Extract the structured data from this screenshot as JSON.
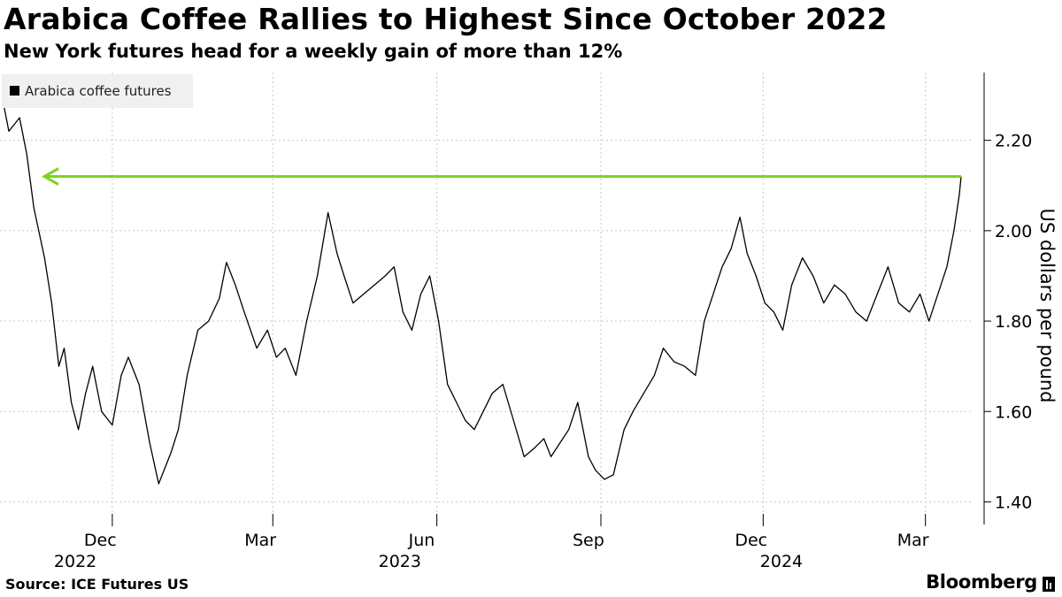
{
  "header": {
    "title": "Arabica Coffee Rallies to Highest Since October 2022",
    "subtitle": "New York futures head for a weekly gain of more than 12%"
  },
  "footer": {
    "source": "Source: ICE Futures US",
    "brand": "Bloomberg"
  },
  "colors": {
    "series": "#000000",
    "arrow": "#7ed321",
    "grid": "#c8c8c8",
    "legend_bg": "#f0f0f0"
  },
  "chart_data": {
    "type": "line",
    "title": "Arabica Coffee Rallies to Highest Since October 2022",
    "subtitle": "New York futures head for a weekly gain of more than 12%",
    "ylabel": "US dollars per pound",
    "xlabel": "",
    "ylim": [
      1.35,
      2.35
    ],
    "yticks": [
      1.4,
      1.6,
      1.8,
      2.0,
      2.2
    ],
    "ytick_labels": [
      "1.40",
      "1.60",
      "1.80",
      "2.00",
      "2.20"
    ],
    "xlim": [
      "2022-10-01",
      "2024-03-22"
    ],
    "month_ticks": [
      {
        "date": "2022-12-01",
        "label": "Dec"
      },
      {
        "date": "2023-03-01",
        "label": "Mar"
      },
      {
        "date": "2023-06-01",
        "label": "Jun"
      },
      {
        "date": "2023-09-01",
        "label": "Sep"
      },
      {
        "date": "2023-12-01",
        "label": "Dec"
      },
      {
        "date": "2024-03-01",
        "label": "Mar"
      }
    ],
    "year_ticks": [
      {
        "date": "2022-12-01",
        "label": "2022"
      },
      {
        "date": "2023-06-01",
        "label": "2023"
      },
      {
        "date": "2024-01-01",
        "label": "2024"
      }
    ],
    "grid": true,
    "legend": {
      "position": "top-left",
      "entries": [
        "Arabica coffee futures"
      ]
    },
    "series": [
      {
        "name": "Arabica coffee futures",
        "x": [
          "2022-10-01",
          "2022-10-04",
          "2022-10-10",
          "2022-10-14",
          "2022-10-18",
          "2022-10-24",
          "2022-10-28",
          "2022-11-01",
          "2022-11-04",
          "2022-11-08",
          "2022-11-12",
          "2022-11-16",
          "2022-11-20",
          "2022-11-25",
          "2022-12-01",
          "2022-12-06",
          "2022-12-10",
          "2022-12-16",
          "2022-12-22",
          "2022-12-27",
          "2023-01-03",
          "2023-01-07",
          "2023-01-12",
          "2023-01-18",
          "2023-01-24",
          "2023-01-30",
          "2023-02-03",
          "2023-02-08",
          "2023-02-13",
          "2023-02-20",
          "2023-02-26",
          "2023-03-03",
          "2023-03-08",
          "2023-03-14",
          "2023-03-20",
          "2023-03-26",
          "2023-04-01",
          "2023-04-06",
          "2023-04-10",
          "2023-04-15",
          "2023-04-21",
          "2023-04-27",
          "2023-05-03",
          "2023-05-08",
          "2023-05-13",
          "2023-05-18",
          "2023-05-23",
          "2023-05-28",
          "2023-06-02",
          "2023-06-07",
          "2023-06-12",
          "2023-06-17",
          "2023-06-22",
          "2023-06-27",
          "2023-07-02",
          "2023-07-08",
          "2023-07-14",
          "2023-07-20",
          "2023-07-26",
          "2023-07-31",
          "2023-08-04",
          "2023-08-09",
          "2023-08-14",
          "2023-08-19",
          "2023-08-25",
          "2023-08-29",
          "2023-09-03",
          "2023-09-08",
          "2023-09-14",
          "2023-09-19",
          "2023-09-25",
          "2023-10-01",
          "2023-10-06",
          "2023-10-12",
          "2023-10-18",
          "2023-10-24",
          "2023-10-29",
          "2023-11-03",
          "2023-11-08",
          "2023-11-13",
          "2023-11-18",
          "2023-11-22",
          "2023-11-27",
          "2023-12-02",
          "2023-12-07",
          "2023-12-12",
          "2023-12-17",
          "2023-12-23",
          "2023-12-29",
          "2024-01-04",
          "2024-01-10",
          "2024-01-16",
          "2024-01-22",
          "2024-01-28",
          "2024-02-03",
          "2024-02-09",
          "2024-02-15",
          "2024-02-21",
          "2024-02-27",
          "2024-03-03",
          "2024-03-08",
          "2024-03-13",
          "2024-03-17",
          "2024-03-20",
          "2024-03-21"
        ],
        "values": [
          2.28,
          2.22,
          2.25,
          2.17,
          2.05,
          1.94,
          1.84,
          1.7,
          1.74,
          1.62,
          1.56,
          1.64,
          1.7,
          1.6,
          1.57,
          1.68,
          1.72,
          1.66,
          1.53,
          1.44,
          1.51,
          1.56,
          1.68,
          1.78,
          1.8,
          1.85,
          1.93,
          1.88,
          1.82,
          1.74,
          1.78,
          1.72,
          1.74,
          1.68,
          1.8,
          1.9,
          2.04,
          1.95,
          1.9,
          1.84,
          1.86,
          1.88,
          1.9,
          1.92,
          1.82,
          1.78,
          1.86,
          1.9,
          1.8,
          1.66,
          1.62,
          1.58,
          1.56,
          1.6,
          1.64,
          1.66,
          1.58,
          1.5,
          1.52,
          1.54,
          1.5,
          1.53,
          1.56,
          1.62,
          1.5,
          1.47,
          1.45,
          1.46,
          1.56,
          1.6,
          1.64,
          1.68,
          1.74,
          1.71,
          1.7,
          1.68,
          1.8,
          1.86,
          1.92,
          1.96,
          2.03,
          1.95,
          1.9,
          1.84,
          1.82,
          1.78,
          1.88,
          1.94,
          1.9,
          1.84,
          1.88,
          1.86,
          1.82,
          1.8,
          1.86,
          1.92,
          1.84,
          1.82,
          1.86,
          1.8,
          1.86,
          1.92,
          2.0,
          2.08,
          2.12
        ]
      }
    ],
    "annotations": [
      {
        "type": "horizontal-arrow",
        "y": 2.12,
        "from_date": "2024-03-21",
        "to_date": "2022-10-04",
        "meaning": "Highest since October 2022"
      }
    ]
  }
}
